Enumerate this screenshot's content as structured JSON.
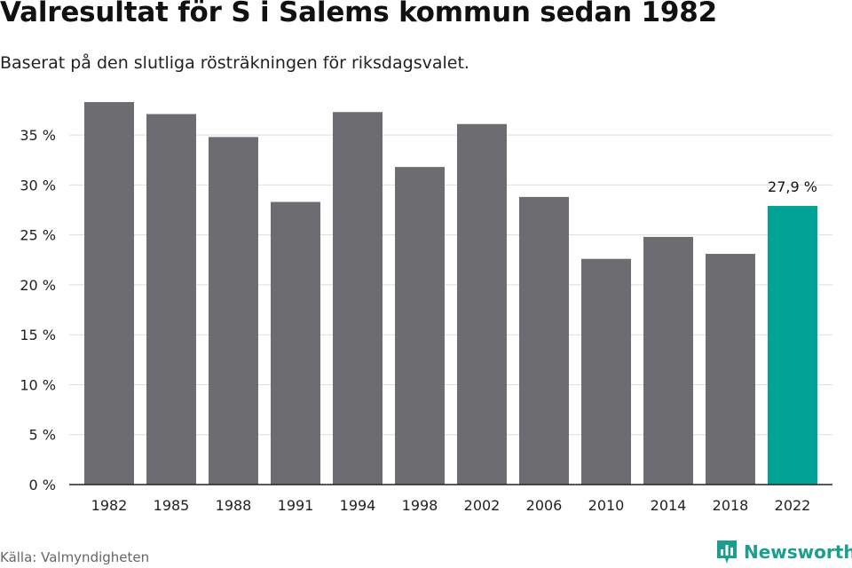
{
  "header": {
    "title": "Valresultat för S i Salems kommun sedan 1982",
    "subtitle": "Baserat på den slutliga rösträkningen för riksdagsvalet."
  },
  "footer": {
    "source": "Källa: Valmyndigheten",
    "brand": "Newsworthy",
    "brand_icon": "bar-chart-logo-icon"
  },
  "colors": {
    "bar": "#6d6c71",
    "highlight": "#00a396",
    "grid": "#dddddd",
    "axis": "#222222",
    "brand": "#1c9e8f"
  },
  "chart_data": {
    "type": "bar",
    "categories": [
      "1982",
      "1985",
      "1988",
      "1991",
      "1994",
      "1998",
      "2002",
      "2006",
      "2010",
      "2014",
      "2018",
      "2022"
    ],
    "values": [
      38.3,
      37.1,
      34.8,
      28.3,
      37.3,
      31.8,
      36.1,
      28.8,
      22.6,
      24.8,
      23.1,
      27.9
    ],
    "highlight_index": 11,
    "data_labels": [
      {
        "index": 11,
        "text": "27,9 %"
      }
    ],
    "ylim": [
      0,
      38.3
    ],
    "yticks": [
      0,
      5,
      10,
      15,
      20,
      25,
      30,
      35
    ],
    "ytick_labels": [
      "0 %",
      "5 %",
      "10 %",
      "15 %",
      "20 %",
      "25 %",
      "30 %",
      "35 %"
    ],
    "grid": true,
    "xlabel": "",
    "ylabel": ""
  }
}
